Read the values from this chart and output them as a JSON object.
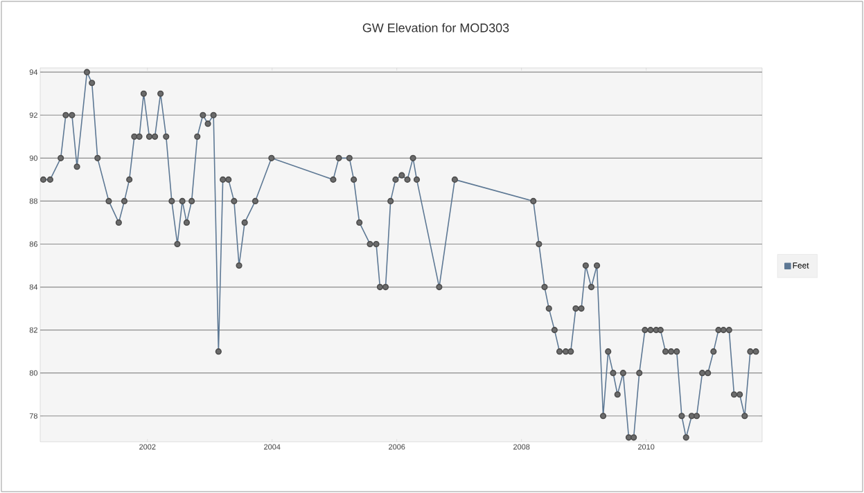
{
  "chart_data": {
    "type": "line",
    "title": "GW Elevation for MOD303",
    "x": [
      2000.33,
      2000.44,
      2000.61,
      2000.69,
      2000.79,
      2000.87,
      2001.03,
      2001.11,
      2001.2,
      2001.38,
      2001.54,
      2001.63,
      2001.71,
      2001.79,
      2001.87,
      2001.94,
      2002.03,
      2002.12,
      2002.21,
      2002.3,
      2002.39,
      2002.48,
      2002.56,
      2002.63,
      2002.71,
      2002.8,
      2002.89,
      2002.97,
      2003.06,
      2003.14,
      2003.21,
      2003.3,
      2003.39,
      2003.47,
      2003.56,
      2003.73,
      2003.99,
      2004.98,
      2005.07,
      2005.24,
      2005.31,
      2005.4,
      2005.57,
      2005.67,
      2005.73,
      2005.82,
      2005.9,
      2005.98,
      2006.08,
      2006.17,
      2006.26,
      2006.32,
      2006.68,
      2006.93,
      2008.19,
      2008.28,
      2008.37,
      2008.44,
      2008.53,
      2008.61,
      2008.71,
      2008.79,
      2008.87,
      2008.96,
      2009.03,
      2009.12,
      2009.21,
      2009.31,
      2009.39,
      2009.47,
      2009.54,
      2009.63,
      2009.72,
      2009.8,
      2009.89,
      2009.98,
      2010.07,
      2010.16,
      2010.23,
      2010.31,
      2010.4,
      2010.49,
      2010.57,
      2010.64,
      2010.73,
      2010.81,
      2010.9,
      2010.99,
      2011.08,
      2011.16,
      2011.24,
      2011.33,
      2011.41,
      2011.5,
      2011.58,
      2011.67,
      2011.76
    ],
    "series": [
      {
        "name": "Feet",
        "color": "#5d7894",
        "values": [
          89,
          89,
          90,
          92,
          92,
          89.6,
          94,
          93.5,
          90,
          88,
          87,
          88,
          89,
          91,
          91,
          93,
          91,
          91,
          93,
          91,
          88,
          86,
          88,
          87,
          88,
          91,
          92,
          91.6,
          92,
          81,
          89,
          89,
          88,
          85,
          87,
          88,
          90,
          89,
          90,
          90,
          89,
          87,
          86,
          86,
          84,
          84,
          88,
          89,
          89.2,
          89,
          90,
          89,
          84,
          89,
          88,
          86,
          84,
          83,
          82,
          81,
          81,
          81,
          83,
          83,
          85,
          84,
          85,
          78,
          81,
          80,
          79,
          80,
          77,
          77,
          80,
          82,
          82,
          82,
          82,
          81,
          81,
          81,
          78,
          77,
          78,
          78,
          80,
          80,
          81,
          82,
          82,
          82,
          79,
          79,
          78,
          81,
          81
        ]
      }
    ],
    "xlim": [
      2000.28,
      2011.86
    ],
    "ylim": [
      76.8,
      94.2
    ],
    "xticks": [
      2002,
      2004,
      2006,
      2008,
      2010
    ],
    "yticks": [
      78,
      80,
      82,
      84,
      86,
      88,
      90,
      92,
      94
    ],
    "grid": "y",
    "legend": "right",
    "marker": "circle",
    "line_style": "solid"
  }
}
